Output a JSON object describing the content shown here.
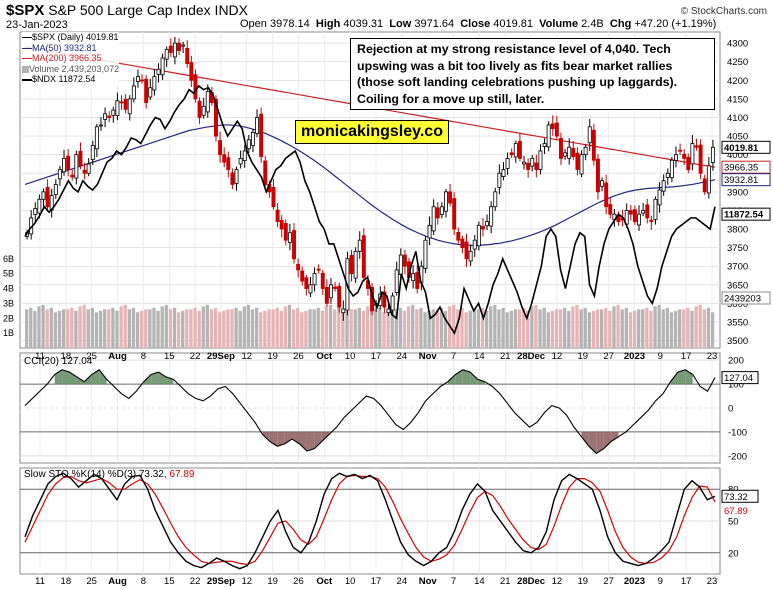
{
  "header": {
    "symbol": "$SPX",
    "name": "S&P 500 Large Cap Index INDX",
    "date": "23-Jan-2023",
    "open_label": "Open",
    "open": "3978.14",
    "high_label": "High",
    "high": "4039.31",
    "low_label": "Low",
    "low": "3971.64",
    "close_label": "Close",
    "close": "4019.81",
    "volume_label": "Volume",
    "volume": "2.4B",
    "chg_label": "Chg",
    "chg": "+47.20 (+1.19%)",
    "copyright": "© StockCharts.com"
  },
  "legend": {
    "spx": "$SPX (Daily) 4019.81",
    "ma50": "MA(50) 3932.81",
    "ma200": "MA(200) 3966.35",
    "volume": "Volume 2,439,203,072",
    "ndx": "$NDX 11872.54"
  },
  "annotation": "Rejection at my strong resistance level of 4,040. Tech upswing was a bit too lively as fits bear market rallies (those soft landing celebrations pushing up laggards). Coiling for a move up still, later.",
  "brand": "monicakingsley.co",
  "colors": {
    "up": "#ffffff",
    "down": "#cc0000",
    "ma50": "#1f2a80",
    "ma200": "#cc2222",
    "ndx": "#000000",
    "cci_pos_fill": "#5f8a5f",
    "cci_neg_fill": "#8a5a5a",
    "vol_up": "#b4b4b4",
    "vol_down": "#e6b4b4",
    "sto_k": "#000000",
    "sto_d": "#dd0000"
  },
  "chart_data": [
    {
      "type": "candlestick",
      "title": "$SPX (Daily)",
      "x_tick_labels": [
        "11",
        "18",
        "25",
        "Aug",
        "8",
        "15",
        "22",
        "29Sep",
        "12",
        "19",
        "26",
        "Oct",
        "10",
        "17",
        "24",
        "Nov",
        "7",
        "14",
        "21",
        "28Dec",
        "12",
        "19",
        "27",
        "2023",
        "9",
        "17",
        "23"
      ],
      "y_ticks": [
        3500,
        3550,
        3600,
        3650,
        3700,
        3750,
        3800,
        3850,
        3900,
        3950,
        4000,
        4050,
        4100,
        4150,
        4200,
        4250,
        4300
      ],
      "ylim": [
        3480,
        4330
      ],
      "volume_ticks": [
        "1B",
        "2B",
        "3B",
        "4B",
        "5B",
        "6B"
      ],
      "price_badges": {
        "close": "4019.81",
        "ma200": "3966.35",
        "ma50": "3932.81",
        "ndx": "11872.54",
        "volume": "2439203"
      },
      "closes": [
        3790,
        3830,
        3855,
        3880,
        3900,
        3860,
        3890,
        3920,
        3960,
        3990,
        3960,
        3940,
        4000,
        3970,
        3950,
        3975,
        4025,
        4075,
        4080,
        4110,
        4100,
        4120,
        4145,
        4140,
        4122,
        4150,
        4185,
        4210,
        4200,
        4140,
        4180,
        4210,
        4230,
        4260,
        4283,
        4275,
        4300,
        4280,
        4295,
        4245,
        4200,
        4150,
        4100,
        4130,
        4170,
        4140,
        4050,
        4000,
        3980,
        3960,
        3920,
        3960,
        3990,
        4010,
        4040,
        4060,
        4100,
        3995,
        3920,
        3900,
        3860,
        3820,
        3800,
        3770,
        3790,
        3720,
        3690,
        3660,
        3640,
        3650,
        3680,
        3690,
        3640,
        3600,
        3650,
        3640,
        3590,
        3585,
        3720,
        3680,
        3740,
        3770,
        3670,
        3640,
        3580,
        3600,
        3625,
        3590,
        3585,
        3620,
        3690,
        3730,
        3700,
        3670,
        3680,
        3640,
        3700,
        3770,
        3810,
        3860,
        3830,
        3860,
        3900,
        3870,
        3800,
        3770,
        3750,
        3720,
        3740,
        3770,
        3810,
        3800,
        3820,
        3860,
        3900,
        3950,
        3960,
        3990,
        4000,
        4030,
        3990,
        3980,
        3960,
        3990,
        3960,
        4010,
        4030,
        4080,
        4070,
        4050,
        3990,
        4005,
        4020,
        3995,
        3960,
        4000,
        4020,
        4075,
        3985,
        3900,
        3930,
        3860,
        3840,
        3840,
        3820,
        3825,
        3850,
        3840,
        3820,
        3840,
        3850,
        3830,
        3820,
        3880,
        3905,
        3930,
        3950,
        3985,
        4000,
        4010,
        3990,
        3960,
        4030,
        4020,
        3950,
        3900,
        3970,
        4019.81
      ],
      "ma50": [
        3920,
        3925,
        3930,
        3935,
        3940,
        3945,
        3950,
        3955,
        3960,
        3965,
        3970,
        3975,
        3980,
        3985,
        3990,
        3995,
        4000,
        4005,
        4010,
        4015,
        4020,
        4025,
        4030,
        4035,
        4040,
        4045,
        4050,
        4055,
        4060,
        4065,
        4068,
        4071,
        4074,
        4076,
        4078,
        4080,
        4080,
        4079,
        4077,
        4074,
        4070,
        4065,
        4060,
        4054,
        4047,
        4040,
        4032,
        4024,
        4015,
        4006,
        3996,
        3986,
        3975,
        3964,
        3952,
        3940,
        3928,
        3916,
        3904,
        3892,
        3880,
        3868,
        3857,
        3846,
        3836,
        3826,
        3817,
        3808,
        3800,
        3793,
        3786,
        3780,
        3775,
        3770,
        3766,
        3763,
        3760,
        3758,
        3757,
        3756,
        3756,
        3757,
        3758,
        3760,
        3762,
        3765,
        3768,
        3772,
        3776,
        3781,
        3786,
        3792,
        3798,
        3805,
        3812,
        3820,
        3828,
        3836,
        3844,
        3852,
        3860,
        3868,
        3875,
        3882,
        3888,
        3893,
        3898,
        3902,
        3905,
        3907,
        3909,
        3910,
        3911,
        3912,
        3913,
        3914,
        3916,
        3918,
        3920,
        3923,
        3926,
        3929,
        3932.81
      ],
      "ma200": [
        4290,
        4286,
        4282,
        4278,
        4274,
        4270,
        4266,
        4262,
        4258,
        4254,
        4250,
        4246,
        4242,
        4238,
        4234,
        4230,
        4226,
        4222,
        4218,
        4214,
        4210,
        4206,
        4202,
        4198,
        4194,
        4190,
        4186,
        4182,
        4178,
        4174,
        4170,
        4166,
        4162,
        4158,
        4154,
        4150,
        4146,
        4142,
        4138,
        4134,
        4130,
        4126,
        4122,
        4118,
        4114,
        4110,
        4106,
        4102,
        4098,
        4094,
        4090,
        4086,
        4082,
        4078,
        4074,
        4070,
        4066,
        4062,
        4058,
        4054,
        4050,
        4046,
        4042,
        4038,
        4034,
        4030,
        4026,
        4022,
        4018,
        4014,
        4010,
        4006,
        4002,
        3998,
        3994,
        3990,
        3986,
        3982,
        3978,
        3974,
        3970,
        3966.35
      ],
      "ndx": [
        3780,
        3800,
        3815,
        3835,
        3860,
        3845,
        3860,
        3880,
        3905,
        3930,
        3910,
        3900,
        3930,
        3915,
        3905,
        3920,
        3950,
        3980,
        3990,
        4010,
        4000,
        4020,
        4045,
        4040,
        4030,
        4055,
        4080,
        4100,
        4095,
        4070,
        4090,
        4115,
        4135,
        4150,
        4175,
        4165,
        4185,
        4175,
        4180,
        4160,
        4120,
        4080,
        4050,
        4070,
        4090,
        4070,
        4010,
        3980,
        3960,
        3940,
        3900,
        3930,
        3960,
        3970,
        3990,
        4000,
        4010,
        3980,
        3930,
        3900,
        3860,
        3820,
        3800,
        3760,
        3760,
        3720,
        3680,
        3640,
        3620,
        3630,
        3660,
        3670,
        3620,
        3590,
        3630,
        3620,
        3570,
        3560,
        3680,
        3640,
        3700,
        3740,
        3660,
        3630,
        3560,
        3570,
        3590,
        3560,
        3540,
        3520,
        3560,
        3640,
        3610,
        3580,
        3600,
        3560,
        3600,
        3650,
        3680,
        3720,
        3690,
        3660,
        3630,
        3590,
        3560,
        3600,
        3650,
        3700,
        3780,
        3800,
        3780,
        3690,
        3640,
        3700,
        3760,
        3790,
        3780,
        3650,
        3620,
        3700,
        3760,
        3800,
        3820,
        3840,
        3830,
        3800,
        3760,
        3700,
        3660,
        3620,
        3600,
        3640,
        3700,
        3740,
        3780,
        3800,
        3810,
        3820,
        3830,
        3830,
        3820,
        3810,
        3800,
        3860
      ],
      "volume_profile": [
        2.6,
        2.7,
        2.5,
        2.8,
        2.9,
        2.6,
        2.7,
        2.4,
        2.5,
        2.6
      ]
    },
    {
      "type": "line",
      "title": "CCI(20)",
      "value_label": "CCI(20) 127.04",
      "current": "127.04",
      "y_ticks": [
        -200,
        -100,
        0,
        100,
        200
      ],
      "ylim": [
        -230,
        230
      ],
      "values": [
        10,
        40,
        70,
        100,
        140,
        160,
        150,
        130,
        110,
        140,
        160,
        120,
        90,
        60,
        40,
        70,
        110,
        140,
        150,
        130,
        120,
        90,
        60,
        40,
        30,
        50,
        80,
        90,
        60,
        20,
        -20,
        -60,
        -110,
        -140,
        -160,
        -150,
        -130,
        -150,
        -180,
        -170,
        -140,
        -110,
        -80,
        -40,
        -10,
        20,
        50,
        40,
        10,
        -30,
        -70,
        -90,
        -60,
        -20,
        30,
        60,
        90,
        110,
        140,
        160,
        150,
        120,
        110,
        90,
        60,
        20,
        -20,
        -50,
        -80,
        -60,
        -20,
        10,
        0,
        -30,
        -80,
        -120,
        -160,
        -190,
        -170,
        -140,
        -120,
        -100,
        -70,
        -40,
        -10,
        30,
        60,
        110,
        150,
        160,
        140,
        90,
        70,
        127.04
      ]
    },
    {
      "type": "line",
      "title": "Slow STO %K(14) %D(3)",
      "value_label": "Slow STO %K(14) %D(3) 73.32, 67.89",
      "k_current": "73.32",
      "d_current": "67.89",
      "y_ticks": [
        20,
        50,
        80
      ],
      "ylim": [
        0,
        100
      ],
      "k": [
        35,
        55,
        70,
        85,
        92,
        95,
        90,
        82,
        88,
        94,
        90,
        80,
        70,
        85,
        92,
        93,
        80,
        60,
        45,
        30,
        20,
        12,
        8,
        6,
        10,
        15,
        12,
        8,
        5,
        8,
        20,
        35,
        50,
        60,
        40,
        25,
        20,
        30,
        50,
        75,
        90,
        95,
        92,
        94,
        90,
        93,
        88,
        70,
        50,
        30,
        18,
        12,
        8,
        12,
        20,
        25,
        40,
        60,
        75,
        85,
        78,
        60,
        50,
        40,
        30,
        22,
        20,
        25,
        40,
        70,
        88,
        94,
        90,
        85,
        80,
        60,
        35,
        20,
        12,
        10,
        8,
        10,
        15,
        22,
        30,
        55,
        80,
        88,
        82,
        70,
        73.32
      ],
      "d": [
        30,
        45,
        60,
        75,
        85,
        91,
        92,
        88,
        86,
        88,
        90,
        86,
        80,
        80,
        85,
        89,
        85,
        75,
        62,
        48,
        35,
        25,
        18,
        12,
        10,
        11,
        12,
        12,
        10,
        9,
        12,
        22,
        35,
        48,
        50,
        42,
        32,
        28,
        35,
        52,
        70,
        85,
        92,
        93,
        92,
        92,
        90,
        82,
        68,
        52,
        38,
        25,
        16,
        12,
        14,
        18,
        27,
        42,
        58,
        72,
        78,
        74,
        64,
        52,
        42,
        32,
        25,
        23,
        28,
        45,
        65,
        82,
        90,
        90,
        86,
        78,
        60,
        40,
        25,
        16,
        11,
        10,
        11,
        15,
        22,
        35,
        55,
        72,
        83,
        82,
        67.89
      ]
    }
  ]
}
